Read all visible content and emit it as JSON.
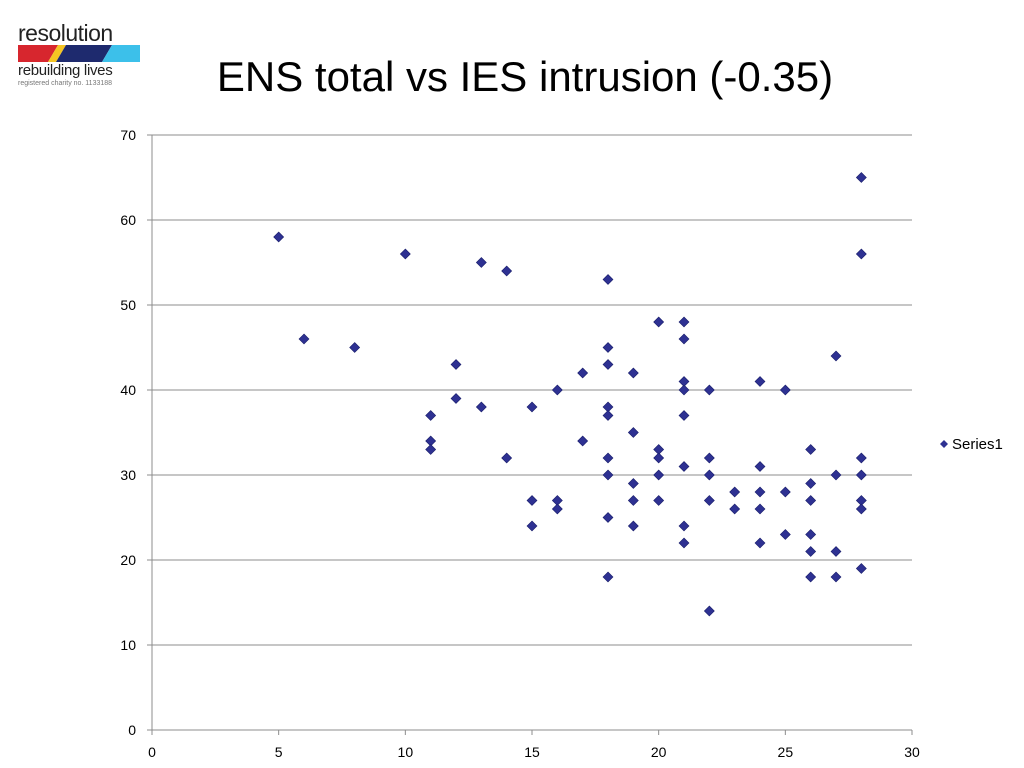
{
  "logo": {
    "wordmark": "resolution",
    "tagline": "rebuilding lives",
    "charity": "registered charity no. 1133188",
    "band_colors": [
      "#d7262e",
      "#f5c523",
      "#1e2a6e",
      "#3cc0ea"
    ]
  },
  "chart_data": {
    "type": "scatter",
    "title": "ENS total vs IES intrusion (-0.35)",
    "xlabel": "",
    "ylabel": "",
    "xlim": [
      0,
      30
    ],
    "ylim": [
      0,
      70
    ],
    "xticks": [
      0,
      5,
      10,
      15,
      20,
      25,
      30
    ],
    "yticks": [
      0,
      10,
      20,
      30,
      40,
      50,
      60,
      70
    ],
    "grid": "horizontal",
    "legend": "right",
    "marker_color": "#2e3192",
    "series": [
      {
        "name": "Series1",
        "points": [
          [
            5,
            58
          ],
          [
            6,
            46
          ],
          [
            8,
            45
          ],
          [
            10,
            56
          ],
          [
            11,
            37
          ],
          [
            11,
            34
          ],
          [
            11,
            33
          ],
          [
            12,
            43
          ],
          [
            12,
            39
          ],
          [
            13,
            55
          ],
          [
            13,
            38
          ],
          [
            14,
            54
          ],
          [
            14,
            32
          ],
          [
            15,
            38
          ],
          [
            15,
            27
          ],
          [
            15,
            24
          ],
          [
            16,
            40
          ],
          [
            16,
            27
          ],
          [
            16,
            26
          ],
          [
            17,
            42
          ],
          [
            17,
            34
          ],
          [
            18,
            53
          ],
          [
            18,
            45
          ],
          [
            18,
            43
          ],
          [
            18,
            38
          ],
          [
            18,
            37
          ],
          [
            18,
            32
          ],
          [
            18,
            30
          ],
          [
            18,
            25
          ],
          [
            18,
            18
          ],
          [
            19,
            42
          ],
          [
            19,
            35
          ],
          [
            19,
            29
          ],
          [
            19,
            27
          ],
          [
            19,
            24
          ],
          [
            20,
            48
          ],
          [
            20,
            33
          ],
          [
            20,
            32
          ],
          [
            20,
            30
          ],
          [
            20,
            27
          ],
          [
            21,
            48
          ],
          [
            21,
            46
          ],
          [
            21,
            41
          ],
          [
            21,
            40
          ],
          [
            21,
            37
          ],
          [
            21,
            31
          ],
          [
            21,
            24
          ],
          [
            21,
            22
          ],
          [
            22,
            40
          ],
          [
            22,
            32
          ],
          [
            22,
            30
          ],
          [
            22,
            27
          ],
          [
            22,
            14
          ],
          [
            23,
            28
          ],
          [
            23,
            26
          ],
          [
            24,
            41
          ],
          [
            24,
            31
          ],
          [
            24,
            28
          ],
          [
            24,
            26
          ],
          [
            24,
            22
          ],
          [
            25,
            40
          ],
          [
            25,
            28
          ],
          [
            25,
            23
          ],
          [
            26,
            33
          ],
          [
            26,
            29
          ],
          [
            26,
            27
          ],
          [
            26,
            23
          ],
          [
            26,
            21
          ],
          [
            26,
            18
          ],
          [
            27,
            44
          ],
          [
            27,
            30
          ],
          [
            27,
            21
          ],
          [
            27,
            18
          ],
          [
            28,
            65
          ],
          [
            28,
            56
          ],
          [
            28,
            32
          ],
          [
            28,
            30
          ],
          [
            28,
            27
          ],
          [
            28,
            26
          ],
          [
            28,
            19
          ]
        ]
      }
    ]
  }
}
